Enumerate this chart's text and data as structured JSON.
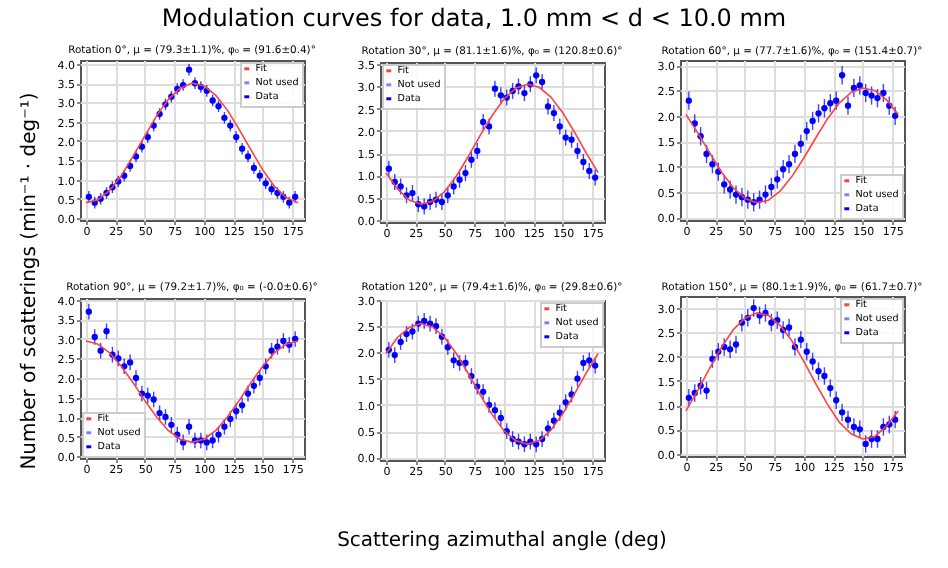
{
  "chart_data": [
    {
      "type": "scatter",
      "title": "Rotation 0°, μ = (79.3±1.1)%, φ₀ = (91.6±0.4)°",
      "xlim": [
        -5,
        185
      ],
      "xticks": [
        0,
        25,
        50,
        75,
        100,
        125,
        150,
        175
      ],
      "ylim": [
        -0.05,
        4.1
      ],
      "yticks": [
        {
          "value": 0,
          "label": "0.0"
        },
        {
          "value": 0.5,
          "label": "0.5"
        },
        {
          "value": 1,
          "label": "1.0"
        },
        {
          "value": 1.5,
          "label": "1.5"
        },
        {
          "value": 2,
          "label": "2.0"
        },
        {
          "value": 2.5,
          "label": "2.5"
        },
        {
          "value": 3,
          "label": "3.0"
        },
        {
          "value": 3.5,
          "label": "3.5"
        },
        {
          "value": 4,
          "label": "4.0"
        }
      ],
      "grid": true,
      "legend": "top right",
      "series": [
        {
          "name": "Fit",
          "type": "line",
          "color": "#ff4040",
          "x": [
            0,
            10,
            20,
            30,
            40,
            50,
            60,
            70,
            80,
            90,
            100,
            110,
            120,
            130,
            140,
            150,
            160,
            170,
            180
          ],
          "values": [
            0.4,
            0.47,
            0.71,
            1.1,
            1.6,
            2.13,
            2.65,
            3.08,
            3.37,
            3.5,
            3.43,
            3.19,
            2.8,
            2.3,
            1.77,
            1.25,
            0.82,
            0.53,
            0.4
          ]
        },
        {
          "name": "Not used",
          "color": "#8080ff"
        },
        {
          "name": "Data",
          "color": "#0000ff",
          "marker": "circle",
          "x": [
            2.5,
            7.5,
            12.5,
            17.5,
            22.5,
            27.5,
            32.5,
            37.5,
            42.5,
            47.5,
            52.5,
            57.5,
            62.5,
            67.5,
            72.5,
            77.5,
            82.5,
            87.5,
            92.5,
            97.5,
            102.5,
            107.5,
            112.5,
            117.5,
            122.5,
            127.5,
            132.5,
            137.5,
            142.5,
            147.5,
            152.5,
            157.5,
            162.5,
            167.5,
            172.5,
            177.5
          ],
          "values": [
            0.55,
            0.4,
            0.5,
            0.65,
            0.8,
            0.95,
            1.1,
            1.35,
            1.6,
            1.85,
            2.1,
            2.4,
            2.7,
            2.95,
            3.15,
            3.35,
            3.45,
            3.85,
            3.5,
            3.4,
            3.3,
            3.05,
            2.9,
            2.6,
            2.4,
            2.1,
            1.8,
            1.6,
            1.3,
            1.1,
            0.9,
            0.75,
            0.65,
            0.55,
            0.4,
            0.55
          ],
          "errors": [
            0.15,
            0.15,
            0.15,
            0.15,
            0.15,
            0.15,
            0.15,
            0.15,
            0.15,
            0.15,
            0.15,
            0.15,
            0.15,
            0.15,
            0.15,
            0.15,
            0.15,
            0.15,
            0.15,
            0.15,
            0.15,
            0.15,
            0.15,
            0.15,
            0.15,
            0.15,
            0.15,
            0.15,
            0.15,
            0.15,
            0.15,
            0.15,
            0.15,
            0.15,
            0.15,
            0.15
          ]
        }
      ]
    },
    {
      "type": "scatter",
      "title": "Rotation 30°, μ = (81.1±1.6)%, φ₀ = (120.8±0.6)°",
      "xlim": [
        -5,
        185
      ],
      "xticks": [
        0,
        25,
        50,
        75,
        100,
        125,
        150,
        175
      ],
      "ylim": [
        -0.05,
        3.55
      ],
      "yticks": [
        {
          "value": 0,
          "label": "0.0"
        },
        {
          "value": 0.5,
          "label": "0.5"
        },
        {
          "value": 1,
          "label": "1.0"
        },
        {
          "value": 1.5,
          "label": "1.5"
        },
        {
          "value": 2,
          "label": "2.0"
        },
        {
          "value": 2.5,
          "label": "2.5"
        },
        {
          "value": 3,
          "label": "3.0"
        },
        {
          "value": 3.5,
          "label": "3.5"
        }
      ],
      "grid": true,
      "legend": "top left",
      "series": [
        {
          "name": "Fit",
          "type": "line",
          "color": "#ff4040",
          "x": [
            0,
            10,
            20,
            30,
            40,
            50,
            60,
            70,
            80,
            90,
            100,
            110,
            120,
            130,
            140,
            150,
            160,
            170,
            180
          ],
          "values": [
            1.06,
            0.69,
            0.44,
            0.35,
            0.42,
            0.64,
            0.99,
            1.43,
            1.9,
            2.34,
            2.71,
            2.96,
            3.05,
            2.98,
            2.76,
            2.41,
            1.97,
            1.5,
            1.06
          ]
        },
        {
          "name": "Not used",
          "color": "#8080ff"
        },
        {
          "name": "Data",
          "color": "#0000ff",
          "marker": "circle",
          "x": [
            2.5,
            7.5,
            12.5,
            17.5,
            22.5,
            27.5,
            32.5,
            37.5,
            42.5,
            47.5,
            52.5,
            57.5,
            62.5,
            67.5,
            72.5,
            77.5,
            82.5,
            87.5,
            92.5,
            97.5,
            102.5,
            107.5,
            112.5,
            117.5,
            122.5,
            127.5,
            132.5,
            137.5,
            142.5,
            147.5,
            152.5,
            157.5,
            162.5,
            167.5,
            172.5,
            177.5
          ],
          "values": [
            1.15,
            0.85,
            0.75,
            0.55,
            0.6,
            0.35,
            0.3,
            0.4,
            0.45,
            0.4,
            0.55,
            0.75,
            0.9,
            1.05,
            1.35,
            1.55,
            2.2,
            2.1,
            2.95,
            2.8,
            2.75,
            2.9,
            3.0,
            2.85,
            3.05,
            3.25,
            3.1,
            2.55,
            2.4,
            2.1,
            1.85,
            1.8,
            1.55,
            1.3,
            1.1,
            0.95
          ],
          "errors": [
            0.18,
            0.18,
            0.18,
            0.18,
            0.18,
            0.18,
            0.18,
            0.18,
            0.18,
            0.18,
            0.18,
            0.18,
            0.18,
            0.18,
            0.18,
            0.18,
            0.18,
            0.18,
            0.18,
            0.18,
            0.18,
            0.18,
            0.18,
            0.18,
            0.18,
            0.18,
            0.18,
            0.18,
            0.18,
            0.18,
            0.18,
            0.18,
            0.18,
            0.18,
            0.18,
            0.18
          ]
        }
      ]
    },
    {
      "type": "scatter",
      "title": "Rotation 60°, μ = (77.7±1.6)%, φ₀ = (151.4±0.7)°",
      "xlim": [
        -5,
        185
      ],
      "xticks": [
        0,
        25,
        50,
        75,
        100,
        125,
        150,
        175
      ],
      "ylim": [
        -0.05,
        3.1
      ],
      "yticks": [
        {
          "value": 0,
          "label": "0.0"
        },
        {
          "value": 0.5,
          "label": "0.5"
        },
        {
          "value": 1,
          "label": "1.0"
        },
        {
          "value": 1.5,
          "label": "1.5"
        },
        {
          "value": 2,
          "label": "2.0"
        },
        {
          "value": 2.5,
          "label": "2.5"
        },
        {
          "value": 3,
          "label": "3.0"
        }
      ],
      "grid": true,
      "legend": "bottom right",
      "series": [
        {
          "name": "Fit",
          "type": "line",
          "color": "#ff4040",
          "x": [
            0,
            10,
            20,
            30,
            40,
            50,
            60,
            70,
            80,
            90,
            100,
            110,
            120,
            130,
            140,
            150,
            160,
            170,
            180
          ],
          "values": [
            2.03,
            1.67,
            1.28,
            0.9,
            0.59,
            0.38,
            0.29,
            0.34,
            0.52,
            0.81,
            1.17,
            1.56,
            1.94,
            2.25,
            2.46,
            2.55,
            2.5,
            2.32,
            2.03
          ]
        },
        {
          "name": "Not used",
          "color": "#8080ff"
        },
        {
          "name": "Data",
          "color": "#0000ff",
          "marker": "circle",
          "x": [
            2.5,
            7.5,
            12.5,
            17.5,
            22.5,
            27.5,
            32.5,
            37.5,
            42.5,
            47.5,
            52.5,
            57.5,
            62.5,
            67.5,
            72.5,
            77.5,
            82.5,
            87.5,
            92.5,
            97.5,
            102.5,
            107.5,
            112.5,
            117.5,
            122.5,
            127.5,
            132.5,
            137.5,
            142.5,
            147.5,
            152.5,
            157.5,
            162.5,
            167.5,
            172.5,
            177.5
          ],
          "values": [
            2.3,
            1.85,
            1.6,
            1.25,
            1.05,
            0.9,
            0.65,
            0.55,
            0.45,
            0.4,
            0.35,
            0.3,
            0.35,
            0.45,
            0.6,
            0.75,
            0.95,
            1.05,
            1.25,
            1.45,
            1.7,
            1.9,
            2.05,
            2.15,
            2.25,
            2.3,
            2.8,
            2.2,
            2.55,
            2.6,
            2.45,
            2.4,
            2.35,
            2.45,
            2.2,
            2.0
          ],
          "errors": [
            0.18,
            0.18,
            0.18,
            0.18,
            0.18,
            0.18,
            0.18,
            0.18,
            0.18,
            0.18,
            0.18,
            0.18,
            0.18,
            0.18,
            0.18,
            0.18,
            0.18,
            0.18,
            0.18,
            0.18,
            0.18,
            0.18,
            0.18,
            0.18,
            0.18,
            0.18,
            0.18,
            0.18,
            0.18,
            0.18,
            0.18,
            0.18,
            0.18,
            0.18,
            0.18,
            0.18
          ]
        }
      ]
    },
    {
      "type": "scatter",
      "title": "Rotation 90°, μ = (79.2±1.7)%, φ₀ = (-0.0±0.6)°",
      "xlim": [
        -5,
        185
      ],
      "xticks": [
        0,
        25,
        50,
        75,
        100,
        125,
        150,
        175
      ],
      "ylim": [
        -0.05,
        4.05
      ],
      "yticks": [
        {
          "value": 0,
          "label": "0.0"
        },
        {
          "value": 0.5,
          "label": "0.5"
        },
        {
          "value": 1,
          "label": "1.0"
        },
        {
          "value": 1.5,
          "label": "1.5"
        },
        {
          "value": 2,
          "label": "2.0"
        },
        {
          "value": 2.5,
          "label": "2.5"
        },
        {
          "value": 3,
          "label": "3.0"
        },
        {
          "value": 3.5,
          "label": "3.5"
        },
        {
          "value": 4,
          "label": "4.0"
        }
      ],
      "grid": true,
      "legend": "bottom left",
      "series": [
        {
          "name": "Fit",
          "type": "line",
          "color": "#ff4040",
          "x": [
            0,
            10,
            20,
            30,
            40,
            50,
            60,
            70,
            80,
            90,
            100,
            110,
            120,
            130,
            140,
            150,
            160,
            170,
            180
          ],
          "values": [
            2.95,
            2.87,
            2.65,
            2.3,
            1.88,
            1.42,
            1.0,
            0.65,
            0.43,
            0.35,
            0.43,
            0.65,
            1.0,
            1.42,
            1.88,
            2.3,
            2.65,
            2.87,
            2.95
          ]
        },
        {
          "name": "Not used",
          "color": "#8080ff"
        },
        {
          "name": "Data",
          "color": "#0000ff",
          "marker": "circle",
          "x": [
            2.5,
            7.5,
            12.5,
            17.5,
            22.5,
            27.5,
            32.5,
            37.5,
            42.5,
            47.5,
            52.5,
            57.5,
            62.5,
            67.5,
            72.5,
            77.5,
            82.5,
            87.5,
            92.5,
            97.5,
            102.5,
            107.5,
            112.5,
            117.5,
            122.5,
            127.5,
            132.5,
            137.5,
            142.5,
            147.5,
            152.5,
            157.5,
            162.5,
            167.5,
            172.5,
            177.5
          ],
          "values": [
            3.7,
            3.05,
            2.7,
            3.2,
            2.6,
            2.5,
            2.3,
            2.4,
            2.0,
            1.6,
            1.55,
            1.45,
            1.1,
            1.0,
            0.8,
            0.55,
            0.35,
            0.75,
            0.4,
            0.4,
            0.35,
            0.4,
            0.55,
            0.75,
            0.95,
            1.15,
            1.3,
            1.6,
            1.8,
            2.0,
            2.3,
            2.7,
            2.8,
            2.95,
            2.85,
            3.0
          ],
          "errors": [
            0.2,
            0.2,
            0.2,
            0.2,
            0.2,
            0.2,
            0.2,
            0.2,
            0.2,
            0.2,
            0.2,
            0.2,
            0.2,
            0.2,
            0.2,
            0.2,
            0.2,
            0.2,
            0.2,
            0.2,
            0.2,
            0.2,
            0.2,
            0.2,
            0.2,
            0.2,
            0.2,
            0.2,
            0.2,
            0.2,
            0.2,
            0.2,
            0.2,
            0.2,
            0.2,
            0.2
          ]
        }
      ]
    },
    {
      "type": "scatter",
      "title": "Rotation 120°, μ = (79.4±1.6)%, φ₀ = (29.8±0.6)°",
      "xlim": [
        -5,
        185
      ],
      "xticks": [
        0,
        25,
        50,
        75,
        100,
        125,
        150,
        175
      ],
      "ylim": [
        -0.05,
        3.0
      ],
      "yticks": [
        {
          "value": 0,
          "label": "0.0"
        },
        {
          "value": 0.5,
          "label": "0.5"
        },
        {
          "value": 1,
          "label": "1.0"
        },
        {
          "value": 1.5,
          "label": "1.5"
        },
        {
          "value": 2,
          "label": "2.0"
        },
        {
          "value": 2.5,
          "label": "2.5"
        },
        {
          "value": 3,
          "label": "3.0"
        }
      ],
      "grid": true,
      "legend": "top right",
      "series": [
        {
          "name": "Fit",
          "type": "line",
          "color": "#ff4040",
          "x": [
            0,
            10,
            20,
            30,
            40,
            50,
            60,
            70,
            80,
            90,
            100,
            110,
            120,
            130,
            140,
            150,
            160,
            170,
            180
          ],
          "values": [
            1.98,
            2.29,
            2.48,
            2.55,
            2.48,
            2.28,
            1.97,
            1.59,
            1.19,
            0.82,
            0.51,
            0.32,
            0.25,
            0.32,
            0.52,
            0.83,
            1.21,
            1.61,
            1.98
          ]
        },
        {
          "name": "Not used",
          "color": "#8080ff"
        },
        {
          "name": "Data",
          "color": "#0000ff",
          "marker": "circle",
          "x": [
            2.5,
            7.5,
            12.5,
            17.5,
            22.5,
            27.5,
            32.5,
            37.5,
            42.5,
            47.5,
            52.5,
            57.5,
            62.5,
            67.5,
            72.5,
            77.5,
            82.5,
            87.5,
            92.5,
            97.5,
            102.5,
            107.5,
            112.5,
            117.5,
            122.5,
            127.5,
            132.5,
            137.5,
            142.5,
            147.5,
            152.5,
            157.5,
            162.5,
            167.5,
            172.5,
            177.5
          ],
          "values": [
            2.05,
            1.95,
            2.2,
            2.35,
            2.4,
            2.55,
            2.6,
            2.55,
            2.5,
            2.3,
            2.1,
            1.85,
            1.8,
            1.8,
            1.55,
            1.35,
            1.25,
            1.0,
            0.9,
            0.75,
            0.5,
            0.35,
            0.3,
            0.25,
            0.3,
            0.25,
            0.35,
            0.55,
            0.7,
            0.85,
            1.05,
            1.2,
            1.5,
            1.8,
            1.85,
            1.75
          ],
          "errors": [
            0.15,
            0.15,
            0.15,
            0.15,
            0.15,
            0.15,
            0.15,
            0.15,
            0.15,
            0.15,
            0.15,
            0.15,
            0.15,
            0.15,
            0.15,
            0.15,
            0.15,
            0.15,
            0.15,
            0.15,
            0.15,
            0.15,
            0.15,
            0.15,
            0.15,
            0.15,
            0.15,
            0.15,
            0.15,
            0.15,
            0.15,
            0.15,
            0.15,
            0.15,
            0.15,
            0.15
          ]
        }
      ]
    },
    {
      "type": "scatter",
      "title": "Rotation 150°, μ = (80.1±1.9)%, φ₀ = (61.7±0.7)°",
      "xlim": [
        -5,
        185
      ],
      "xticks": [
        0,
        25,
        50,
        75,
        100,
        125,
        150,
        175
      ],
      "ylim": [
        -0.05,
        3.25
      ],
      "yticks": [
        {
          "value": 0,
          "label": "0.0"
        },
        {
          "value": 0.5,
          "label": "0.5"
        },
        {
          "value": 1,
          "label": "1.0"
        },
        {
          "value": 1.5,
          "label": "1.5"
        },
        {
          "value": 2,
          "label": "2.0"
        },
        {
          "value": 2.5,
          "label": "2.5"
        },
        {
          "value": 3,
          "label": "3.0"
        }
      ],
      "grid": true,
      "legend": "top right",
      "series": [
        {
          "name": "Fit",
          "type": "line",
          "color": "#ff4040",
          "x": [
            0,
            10,
            20,
            30,
            40,
            50,
            60,
            70,
            80,
            90,
            100,
            110,
            120,
            130,
            140,
            150,
            160,
            170,
            180
          ],
          "values": [
            0.88,
            1.3,
            1.75,
            2.18,
            2.55,
            2.79,
            2.9,
            2.85,
            2.64,
            2.32,
            1.9,
            1.45,
            1.02,
            0.65,
            0.41,
            0.3,
            0.35,
            0.56,
            0.88
          ]
        },
        {
          "name": "Not used",
          "color": "#8080ff"
        },
        {
          "name": "Data",
          "color": "#0000ff",
          "marker": "circle",
          "x": [
            2.5,
            7.5,
            12.5,
            17.5,
            22.5,
            27.5,
            32.5,
            37.5,
            42.5,
            47.5,
            52.5,
            57.5,
            62.5,
            67.5,
            72.5,
            77.5,
            82.5,
            87.5,
            92.5,
            97.5,
            102.5,
            107.5,
            112.5,
            117.5,
            122.5,
            127.5,
            132.5,
            137.5,
            142.5,
            147.5,
            152.5,
            157.5,
            162.5,
            167.5,
            172.5,
            177.5
          ],
          "values": [
            1.15,
            1.25,
            1.4,
            1.3,
            1.95,
            2.1,
            2.2,
            2.15,
            2.25,
            2.7,
            2.8,
            3.0,
            2.85,
            2.9,
            2.7,
            2.75,
            2.55,
            2.6,
            2.2,
            2.35,
            2.1,
            1.9,
            1.7,
            1.6,
            1.35,
            1.1,
            0.85,
            0.7,
            0.55,
            0.5,
            0.2,
            0.3,
            0.3,
            0.55,
            0.6,
            0.7
          ],
          "errors": [
            0.18,
            0.18,
            0.18,
            0.18,
            0.18,
            0.18,
            0.18,
            0.18,
            0.18,
            0.18,
            0.18,
            0.18,
            0.18,
            0.18,
            0.18,
            0.18,
            0.18,
            0.18,
            0.18,
            0.18,
            0.18,
            0.18,
            0.18,
            0.18,
            0.18,
            0.18,
            0.18,
            0.18,
            0.18,
            0.18,
            0.18,
            0.18,
            0.18,
            0.18,
            0.18,
            0.18
          ]
        }
      ]
    },
    {
      "type": "other",
      "title": "Modulation curves for data, 1.0 mm < d < 10.0 mm",
      "xlabel": "Scattering azimuthal angle (deg)",
      "ylabel": "Number of scatterings (min⁻¹ · deg⁻¹)"
    }
  ]
}
